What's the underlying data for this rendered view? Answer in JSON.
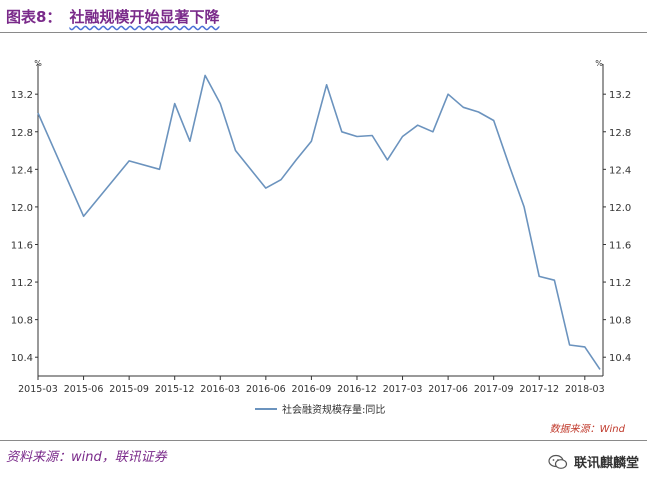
{
  "figure": {
    "label": "图表8：",
    "title": "社融规模开始显著下降"
  },
  "chart_data": {
    "type": "line",
    "unit_left": "%",
    "unit_right": "%",
    "xlabel": "",
    "ylabel": "",
    "ylim": [
      10.2,
      13.5
    ],
    "yticks": [
      "13.2",
      "12.8",
      "12.4",
      "12.0",
      "11.6",
      "11.2",
      "10.8",
      "10.4"
    ],
    "yticks_right": [
      "13.2",
      "12.8",
      "12.4",
      "12.0",
      "11.6",
      "11.2",
      "10.8",
      "10.4"
    ],
    "xtick_labels": [
      "2015-03",
      "2015-06",
      "2015-09",
      "2015-12",
      "2016-03",
      "2016-06",
      "2016-09",
      "2016-12",
      "2017-03",
      "2017-06",
      "2017-09",
      "2017-12",
      "2018-03"
    ],
    "series": [
      {
        "name": "社会融资规模存量:同比",
        "color": "#6b93be",
        "x": [
          "2015-03",
          "2015-06",
          "2015-09",
          "2015-11",
          "2015-12",
          "2016-01",
          "2016-02",
          "2016-03",
          "2016-04",
          "2016-05",
          "2016-06",
          "2016-07",
          "2016-08",
          "2016-09",
          "2016-10",
          "2016-11",
          "2016-12",
          "2017-01",
          "2017-02",
          "2017-03",
          "2017-04",
          "2017-05",
          "2017-06",
          "2017-07",
          "2017-08",
          "2017-09",
          "2017-10",
          "2017-11",
          "2017-12",
          "2018-01",
          "2018-02",
          "2018-03",
          "2018-04"
        ],
        "values": [
          13.0,
          11.9,
          12.49,
          12.4,
          13.1,
          12.7,
          13.4,
          13.1,
          12.6,
          12.4,
          12.2,
          12.29,
          12.5,
          12.7,
          13.3,
          12.8,
          12.75,
          12.76,
          12.5,
          12.75,
          12.87,
          12.8,
          13.2,
          13.06,
          13.01,
          12.92,
          12.45,
          12.0,
          11.26,
          11.22,
          10.53,
          10.51,
          10.27
        ]
      }
    ],
    "grid": false,
    "legend": "bottom-center",
    "source_note": "数据来源：Wind"
  },
  "footer": {
    "source": "资料来源：wind，联讯证券",
    "watermark": "联讯麒麟堂"
  }
}
